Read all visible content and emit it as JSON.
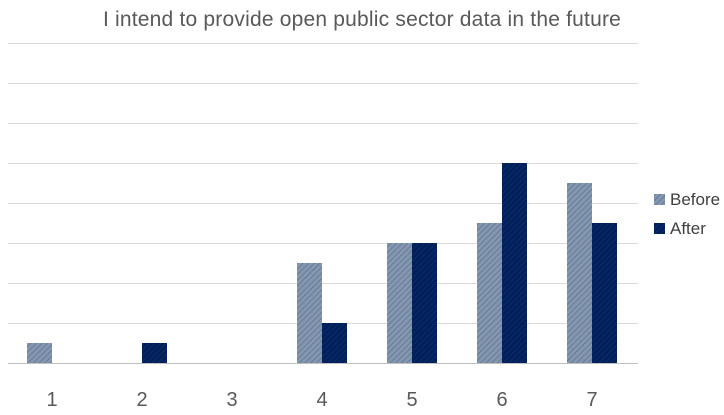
{
  "chart_data": {
    "type": "bar",
    "title": "I intend to provide open public sector data in the future",
    "xlabel": "",
    "ylabel": "",
    "categories": [
      "1",
      "2",
      "3",
      "4",
      "5",
      "6",
      "7"
    ],
    "series": [
      {
        "name": "Before",
        "values": [
          0.5,
          0,
          0,
          2.5,
          3,
          3.5,
          4.5
        ],
        "color": "#8497b0",
        "pattern": "hatched"
      },
      {
        "name": "After",
        "values": [
          0,
          0.5,
          0,
          1,
          3,
          5,
          3.5
        ],
        "color": "#00205b",
        "pattern": "solid"
      }
    ],
    "ylim": [
      0,
      8
    ],
    "y_tick_step": 1,
    "y_tick_labels_shown": false,
    "grid": "horizontal",
    "legend": "right"
  }
}
